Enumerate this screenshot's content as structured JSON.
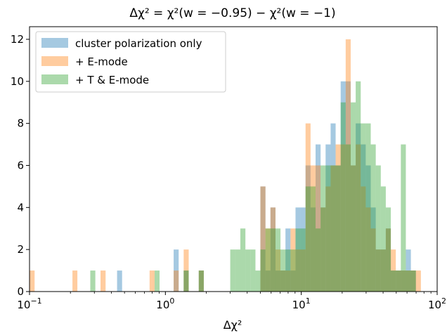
{
  "chart_data": {
    "type": "bar",
    "title": "Δχ² = χ²(w = −0.95) − χ²(w = −1)",
    "xlabel": "Δχ²",
    "ylabel": "",
    "x_scale": "log",
    "xlim": [
      0.1,
      100
    ],
    "ylim": [
      0,
      12.6
    ],
    "x_ticks": [
      {
        "value": 0.1,
        "base": "10",
        "exp": "−1"
      },
      {
        "value": 1,
        "base": "10",
        "exp": "0"
      },
      {
        "value": 10,
        "base": "10",
        "exp": "1"
      },
      {
        "value": 100,
        "base": "10",
        "exp": "2"
      }
    ],
    "y_ticks": [
      0,
      2,
      4,
      6,
      8,
      10,
      12
    ],
    "legend_position": "top-left",
    "series": [
      {
        "name": "cluster polarization only",
        "color": "#1f77b4",
        "bins": [
          [
            0.441,
            0.48,
            1
          ],
          [
            1.15,
            1.252,
            2
          ],
          [
            1.363,
            1.484,
            1
          ],
          [
            1.76,
            1.916,
            1
          ],
          [
            5.0,
            5.45,
            5
          ],
          [
            5.45,
            5.93,
            1
          ],
          [
            5.93,
            6.46,
            4
          ],
          [
            6.46,
            7.03,
            1
          ],
          [
            7.03,
            7.65,
            1
          ],
          [
            7.65,
            8.33,
            3
          ],
          [
            8.33,
            9.07,
            1
          ],
          [
            9.07,
            9.87,
            4
          ],
          [
            9.87,
            10.75,
            4
          ],
          [
            10.75,
            11.7,
            6
          ],
          [
            11.7,
            12.74,
            4
          ],
          [
            12.74,
            13.87,
            7
          ],
          [
            13.87,
            15.1,
            4
          ],
          [
            15.1,
            16.44,
            7
          ],
          [
            16.44,
            17.9,
            8
          ],
          [
            17.9,
            19.49,
            6
          ],
          [
            19.49,
            21.22,
            10
          ],
          [
            21.22,
            23.1,
            10
          ],
          [
            23.1,
            25.15,
            6
          ],
          [
            25.15,
            27.38,
            8
          ],
          [
            27.38,
            29.81,
            7
          ],
          [
            29.81,
            32.45,
            6
          ],
          [
            32.45,
            35.33,
            4
          ],
          [
            35.33,
            38.47,
            2
          ],
          [
            38.47,
            41.88,
            2
          ],
          [
            41.88,
            45.59,
            3
          ],
          [
            45.59,
            49.63,
            1
          ],
          [
            49.63,
            54.04,
            1
          ],
          [
            54.04,
            58.83,
            1
          ],
          [
            58.83,
            64.05,
            2
          ],
          [
            64.05,
            69.73,
            1
          ]
        ]
      },
      {
        "name": "+ E-mode",
        "color": "#ff7f0e",
        "bins": [
          [
            0.1,
            0.109,
            1
          ],
          [
            0.207,
            0.225,
            1
          ],
          [
            0.333,
            0.363,
            1
          ],
          [
            0.765,
            0.833,
            1
          ],
          [
            1.15,
            1.252,
            1
          ],
          [
            1.363,
            1.484,
            2
          ],
          [
            1.76,
            1.916,
            1
          ],
          [
            5.0,
            5.45,
            5
          ],
          [
            5.45,
            5.93,
            3
          ],
          [
            5.93,
            6.46,
            4
          ],
          [
            6.46,
            7.03,
            2
          ],
          [
            7.03,
            7.65,
            1
          ],
          [
            7.65,
            8.33,
            1
          ],
          [
            8.33,
            9.07,
            3
          ],
          [
            9.07,
            9.87,
            2
          ],
          [
            9.87,
            10.75,
            2
          ],
          [
            10.75,
            11.7,
            8
          ],
          [
            11.7,
            12.74,
            6
          ],
          [
            12.74,
            13.87,
            6
          ],
          [
            13.87,
            15.1,
            4
          ],
          [
            15.1,
            16.44,
            5
          ],
          [
            16.44,
            17.9,
            6
          ],
          [
            17.9,
            19.49,
            7
          ],
          [
            19.49,
            21.22,
            7
          ],
          [
            21.22,
            23.1,
            12
          ],
          [
            23.1,
            25.15,
            6
          ],
          [
            25.15,
            27.38,
            7
          ],
          [
            27.38,
            29.81,
            5
          ],
          [
            29.81,
            32.45,
            4
          ],
          [
            32.45,
            35.33,
            3
          ],
          [
            35.33,
            38.47,
            2
          ],
          [
            38.47,
            41.88,
            2
          ],
          [
            41.88,
            45.59,
            3
          ],
          [
            45.59,
            49.63,
            2
          ],
          [
            49.63,
            54.04,
            1
          ],
          [
            54.04,
            58.83,
            1
          ],
          [
            58.83,
            64.05,
            1
          ],
          [
            64.05,
            69.73,
            1
          ],
          [
            69.73,
            75.91,
            1
          ]
        ]
      },
      {
        "name": "+ T & E-mode",
        "color": "#2ca02c",
        "bins": [
          [
            0.28,
            0.305,
            1
          ],
          [
            0.833,
            0.906,
            1
          ],
          [
            1.363,
            1.484,
            1
          ],
          [
            1.76,
            1.916,
            1
          ],
          [
            3.0,
            3.27,
            2
          ],
          [
            3.27,
            3.56,
            2
          ],
          [
            3.56,
            3.88,
            3
          ],
          [
            3.88,
            4.22,
            2
          ],
          [
            4.22,
            4.6,
            2
          ],
          [
            4.6,
            5.0,
            1
          ],
          [
            5.0,
            5.45,
            2
          ],
          [
            5.45,
            5.93,
            3
          ],
          [
            5.93,
            6.46,
            3
          ],
          [
            6.46,
            7.03,
            3
          ],
          [
            7.03,
            7.65,
            2
          ],
          [
            7.65,
            8.33,
            2
          ],
          [
            8.33,
            9.07,
            2
          ],
          [
            9.07,
            9.87,
            3
          ],
          [
            9.87,
            10.75,
            3
          ],
          [
            10.75,
            11.7,
            5
          ],
          [
            11.7,
            12.74,
            5
          ],
          [
            12.74,
            13.87,
            3
          ],
          [
            13.87,
            15.1,
            6
          ],
          [
            15.1,
            16.44,
            6
          ],
          [
            16.44,
            17.9,
            6
          ],
          [
            17.9,
            19.49,
            6
          ],
          [
            19.49,
            21.22,
            9
          ],
          [
            21.22,
            23.1,
            7
          ],
          [
            23.1,
            25.15,
            9
          ],
          [
            25.15,
            27.38,
            10
          ],
          [
            27.38,
            29.81,
            8
          ],
          [
            29.81,
            32.45,
            8
          ],
          [
            32.45,
            35.33,
            7
          ],
          [
            35.33,
            38.47,
            6
          ],
          [
            38.47,
            41.88,
            5
          ],
          [
            41.88,
            45.59,
            4
          ],
          [
            45.59,
            49.63,
            1
          ],
          [
            49.63,
            54.04,
            1
          ],
          [
            54.04,
            58.83,
            7
          ],
          [
            58.83,
            64.05,
            1
          ],
          [
            64.05,
            69.73,
            1
          ]
        ]
      }
    ]
  }
}
